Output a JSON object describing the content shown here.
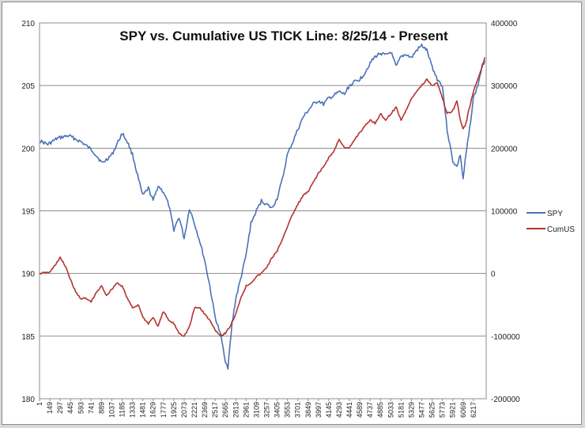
{
  "chart_data": {
    "type": "line",
    "title": "SPY vs. Cumulative US TICK Line:  8/25/14 - Present",
    "xlabel": "",
    "ylabel": "",
    "x_tick_labels": [
      "1",
      "149",
      "297",
      "445",
      "593",
      "741",
      "889",
      "1037",
      "1185",
      "1333",
      "1481",
      "1629",
      "1777",
      "1925",
      "2073",
      "2221",
      "2369",
      "2517",
      "2665",
      "2813",
      "2961",
      "3109",
      "3257",
      "3405",
      "3553",
      "3701",
      "3849",
      "3997",
      "4145",
      "4293",
      "4441",
      "4589",
      "4737",
      "4885",
      "5033",
      "5181",
      "5329",
      "5477",
      "5625",
      "5773",
      "5921",
      "6069",
      "6217"
    ],
    "xlim": [
      1,
      6400
    ],
    "ylim_left": [
      180,
      210
    ],
    "ylim_right": [
      -200000,
      400000
    ],
    "yticks_left": [
      180,
      185,
      190,
      195,
      200,
      205,
      210
    ],
    "yticks_right": [
      -200000,
      -100000,
      0,
      100000,
      200000,
      300000,
      400000
    ],
    "grid": "horizontal",
    "legend_position": "right",
    "series": [
      {
        "name": "SPY",
        "axis": "left",
        "color": "#4a72b8",
        "points": [
          [
            1,
            200.6
          ],
          [
            120,
            200.3
          ],
          [
            260,
            200.8
          ],
          [
            420,
            201.0
          ],
          [
            600,
            200.5
          ],
          [
            760,
            199.8
          ],
          [
            900,
            198.8
          ],
          [
            1040,
            199.5
          ],
          [
            1185,
            201.2
          ],
          [
            1260,
            200.5
          ],
          [
            1333,
            199.5
          ],
          [
            1420,
            197.5
          ],
          [
            1480,
            196.2
          ],
          [
            1560,
            196.8
          ],
          [
            1629,
            195.8
          ],
          [
            1700,
            197.0
          ],
          [
            1777,
            196.5
          ],
          [
            1850,
            195.5
          ],
          [
            1925,
            193.5
          ],
          [
            2000,
            194.5
          ],
          [
            2073,
            192.8
          ],
          [
            2150,
            195.2
          ],
          [
            2221,
            194.0
          ],
          [
            2300,
            192.5
          ],
          [
            2369,
            191.0
          ],
          [
            2440,
            189.0
          ],
          [
            2517,
            186.5
          ],
          [
            2600,
            185.0
          ],
          [
            2665,
            183.0
          ],
          [
            2700,
            182.5
          ],
          [
            2760,
            186.0
          ],
          [
            2813,
            188.0
          ],
          [
            2880,
            189.5
          ],
          [
            2961,
            191.5
          ],
          [
            3030,
            194.0
          ],
          [
            3109,
            195.0
          ],
          [
            3180,
            195.8
          ],
          [
            3257,
            195.5
          ],
          [
            3330,
            195.2
          ],
          [
            3405,
            196.0
          ],
          [
            3480,
            197.5
          ],
          [
            3553,
            199.5
          ],
          [
            3630,
            200.5
          ],
          [
            3701,
            201.5
          ],
          [
            3780,
            202.5
          ],
          [
            3849,
            203.0
          ],
          [
            3920,
            203.5
          ],
          [
            3997,
            203.8
          ],
          [
            4070,
            203.5
          ],
          [
            4145,
            204.0
          ],
          [
            4220,
            204.2
          ],
          [
            4293,
            204.5
          ],
          [
            4370,
            204.3
          ],
          [
            4441,
            205.0
          ],
          [
            4520,
            205.3
          ],
          [
            4589,
            205.5
          ],
          [
            4660,
            206.0
          ],
          [
            4737,
            206.8
          ],
          [
            4810,
            207.3
          ],
          [
            4885,
            207.6
          ],
          [
            4960,
            207.4
          ],
          [
            5033,
            207.7
          ],
          [
            5110,
            206.5
          ],
          [
            5181,
            207.3
          ],
          [
            5250,
            207.5
          ],
          [
            5329,
            207.2
          ],
          [
            5400,
            207.8
          ],
          [
            5477,
            208.2
          ],
          [
            5550,
            207.8
          ],
          [
            5625,
            206.5
          ],
          [
            5700,
            205.5
          ],
          [
            5773,
            205.0
          ],
          [
            5840,
            201.5
          ],
          [
            5921,
            199.0
          ],
          [
            5980,
            198.5
          ],
          [
            6030,
            199.5
          ],
          [
            6069,
            197.5
          ],
          [
            6110,
            199.5
          ],
          [
            6150,
            201.0
          ],
          [
            6217,
            204.0
          ],
          [
            6280,
            205.0
          ],
          [
            6340,
            206.5
          ],
          [
            6380,
            207.0
          ]
        ]
      },
      {
        "name": "CumUS",
        "axis": "right",
        "color": "#b3332e",
        "points": [
          [
            1,
            0
          ],
          [
            150,
            2000
          ],
          [
            297,
            25000
          ],
          [
            380,
            10000
          ],
          [
            445,
            -10000
          ],
          [
            520,
            -30000
          ],
          [
            593,
            -40000
          ],
          [
            660,
            -40000
          ],
          [
            741,
            -45000
          ],
          [
            820,
            -30000
          ],
          [
            889,
            -20000
          ],
          [
            960,
            -35000
          ],
          [
            1037,
            -25000
          ],
          [
            1110,
            -15000
          ],
          [
            1185,
            -20000
          ],
          [
            1260,
            -40000
          ],
          [
            1333,
            -55000
          ],
          [
            1420,
            -50000
          ],
          [
            1481,
            -70000
          ],
          [
            1560,
            -80000
          ],
          [
            1629,
            -70000
          ],
          [
            1700,
            -85000
          ],
          [
            1777,
            -60000
          ],
          [
            1850,
            -75000
          ],
          [
            1925,
            -80000
          ],
          [
            2000,
            -95000
          ],
          [
            2073,
            -100000
          ],
          [
            2150,
            -85000
          ],
          [
            2221,
            -55000
          ],
          [
            2300,
            -55000
          ],
          [
            2369,
            -65000
          ],
          [
            2440,
            -75000
          ],
          [
            2517,
            -90000
          ],
          [
            2600,
            -100000
          ],
          [
            2665,
            -95000
          ],
          [
            2730,
            -85000
          ],
          [
            2813,
            -65000
          ],
          [
            2880,
            -40000
          ],
          [
            2961,
            -20000
          ],
          [
            3030,
            -15000
          ],
          [
            3109,
            -5000
          ],
          [
            3180,
            0
          ],
          [
            3257,
            10000
          ],
          [
            3330,
            25000
          ],
          [
            3405,
            35000
          ],
          [
            3480,
            55000
          ],
          [
            3553,
            75000
          ],
          [
            3630,
            95000
          ],
          [
            3701,
            110000
          ],
          [
            3780,
            125000
          ],
          [
            3849,
            130000
          ],
          [
            3920,
            145000
          ],
          [
            3997,
            160000
          ],
          [
            4070,
            170000
          ],
          [
            4145,
            185000
          ],
          [
            4220,
            195000
          ],
          [
            4293,
            215000
          ],
          [
            4370,
            200000
          ],
          [
            4441,
            200000
          ],
          [
            4520,
            215000
          ],
          [
            4589,
            225000
          ],
          [
            4660,
            235000
          ],
          [
            4737,
            245000
          ],
          [
            4810,
            240000
          ],
          [
            4885,
            255000
          ],
          [
            4960,
            245000
          ],
          [
            5033,
            255000
          ],
          [
            5110,
            265000
          ],
          [
            5181,
            245000
          ],
          [
            5250,
            260000
          ],
          [
            5329,
            280000
          ],
          [
            5400,
            290000
          ],
          [
            5477,
            300000
          ],
          [
            5550,
            310000
          ],
          [
            5625,
            300000
          ],
          [
            5700,
            305000
          ],
          [
            5773,
            280000
          ],
          [
            5840,
            255000
          ],
          [
            5921,
            260000
          ],
          [
            5980,
            275000
          ],
          [
            6030,
            245000
          ],
          [
            6069,
            230000
          ],
          [
            6110,
            240000
          ],
          [
            6150,
            260000
          ],
          [
            6217,
            290000
          ],
          [
            6280,
            310000
          ],
          [
            6340,
            330000
          ],
          [
            6380,
            345000
          ]
        ]
      }
    ]
  }
}
